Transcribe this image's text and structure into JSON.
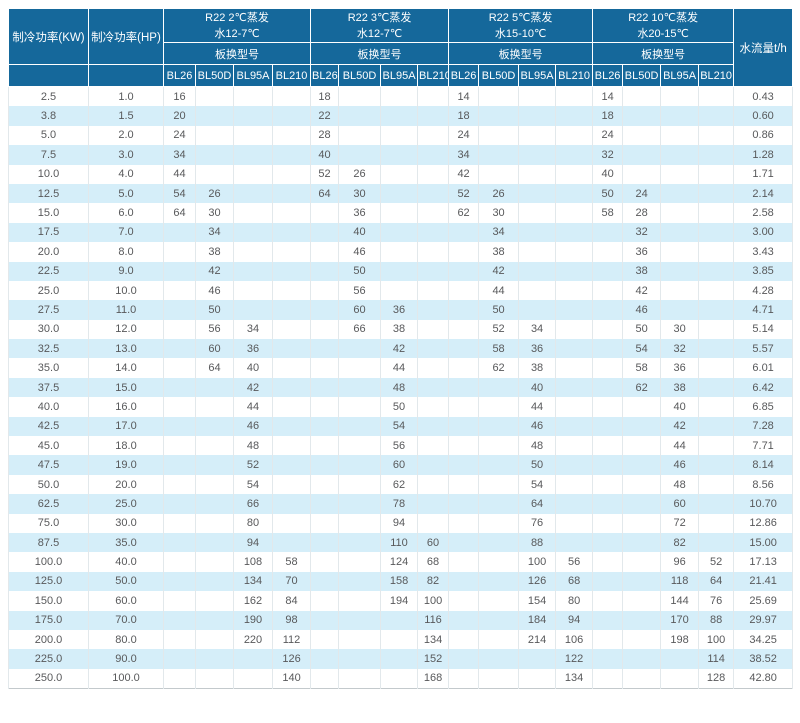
{
  "colors": {
    "header_bg": "#15689B",
    "header_text": "#ffffff",
    "row_bg": "#ffffff",
    "row_alt_bg": "#D5EEF9",
    "cell_text": "#58595B",
    "grid_line": "#e2e8eb"
  },
  "table": {
    "header": {
      "kw_label": "制冷功率(KW)",
      "hp_label": "制冷功率(HP)",
      "flow_label": "水流量t/h",
      "model_group_label": "板换型号",
      "model_columns": [
        "BL26",
        "BL50D",
        "BL95A",
        "BL210"
      ],
      "groups": [
        {
          "condition": "R22 2℃蒸发",
          "water": "水12-7℃"
        },
        {
          "condition": "R22 3℃蒸发",
          "water": "水12-7℃"
        },
        {
          "condition": "R22 5℃蒸发",
          "water": "水15-10℃"
        },
        {
          "condition": "R22 10℃蒸发",
          "water": "水20-15℃"
        }
      ]
    },
    "rows": [
      {
        "kw": "2.5",
        "hp": "1.0",
        "values": [
          "16",
          "",
          "",
          "",
          "18",
          "",
          "",
          "",
          "14",
          "",
          "",
          "",
          "14",
          "",
          "",
          ""
        ],
        "flow": "0.43"
      },
      {
        "kw": "3.8",
        "hp": "1.5",
        "values": [
          "20",
          "",
          "",
          "",
          "22",
          "",
          "",
          "",
          "18",
          "",
          "",
          "",
          "18",
          "",
          "",
          ""
        ],
        "flow": "0.60"
      },
      {
        "kw": "5.0",
        "hp": "2.0",
        "values": [
          "24",
          "",
          "",
          "",
          "28",
          "",
          "",
          "",
          "24",
          "",
          "",
          "",
          "24",
          "",
          "",
          ""
        ],
        "flow": "0.86"
      },
      {
        "kw": "7.5",
        "hp": "3.0",
        "values": [
          "34",
          "",
          "",
          "",
          "40",
          "",
          "",
          "",
          "34",
          "",
          "",
          "",
          "32",
          "",
          "",
          ""
        ],
        "flow": "1.28"
      },
      {
        "kw": "10.0",
        "hp": "4.0",
        "values": [
          "44",
          "",
          "",
          "",
          "52",
          "26",
          "",
          "",
          "42",
          "",
          "",
          "",
          "40",
          "",
          "",
          ""
        ],
        "flow": "1.71"
      },
      {
        "kw": "12.5",
        "hp": "5.0",
        "values": [
          "54",
          "26",
          "",
          "",
          "64",
          "30",
          "",
          "",
          "52",
          "26",
          "",
          "",
          "50",
          "24",
          "",
          ""
        ],
        "flow": "2.14"
      },
      {
        "kw": "15.0",
        "hp": "6.0",
        "values": [
          "64",
          "30",
          "",
          "",
          "",
          "36",
          "",
          "",
          "62",
          "30",
          "",
          "",
          "58",
          "28",
          "",
          ""
        ],
        "flow": "2.58"
      },
      {
        "kw": "17.5",
        "hp": "7.0",
        "values": [
          "",
          "34",
          "",
          "",
          "",
          "40",
          "",
          "",
          "",
          "34",
          "",
          "",
          "",
          "32",
          "",
          ""
        ],
        "flow": "3.00"
      },
      {
        "kw": "20.0",
        "hp": "8.0",
        "values": [
          "",
          "38",
          "",
          "",
          "",
          "46",
          "",
          "",
          "",
          "38",
          "",
          "",
          "",
          "36",
          "",
          ""
        ],
        "flow": "3.43"
      },
      {
        "kw": "22.5",
        "hp": "9.0",
        "values": [
          "",
          "42",
          "",
          "",
          "",
          "50",
          "",
          "",
          "",
          "42",
          "",
          "",
          "",
          "38",
          "",
          ""
        ],
        "flow": "3.85"
      },
      {
        "kw": "25.0",
        "hp": "10.0",
        "values": [
          "",
          "46",
          "",
          "",
          "",
          "56",
          "",
          "",
          "",
          "44",
          "",
          "",
          "",
          "42",
          "",
          ""
        ],
        "flow": "4.28"
      },
      {
        "kw": "27.5",
        "hp": "11.0",
        "values": [
          "",
          "50",
          "",
          "",
          "",
          "60",
          "36",
          "",
          "",
          "50",
          "",
          "",
          "",
          "46",
          "",
          ""
        ],
        "flow": "4.71"
      },
      {
        "kw": "30.0",
        "hp": "12.0",
        "values": [
          "",
          "56",
          "34",
          "",
          "",
          "66",
          "38",
          "",
          "",
          "52",
          "34",
          "",
          "",
          "50",
          "30",
          ""
        ],
        "flow": "5.14"
      },
      {
        "kw": "32.5",
        "hp": "13.0",
        "values": [
          "",
          "60",
          "36",
          "",
          "",
          "",
          "42",
          "",
          "",
          "58",
          "36",
          "",
          "",
          "54",
          "32",
          ""
        ],
        "flow": "5.57"
      },
      {
        "kw": "35.0",
        "hp": "14.0",
        "values": [
          "",
          "64",
          "40",
          "",
          "",
          "",
          "44",
          "",
          "",
          "62",
          "38",
          "",
          "",
          "58",
          "36",
          ""
        ],
        "flow": "6.01"
      },
      {
        "kw": "37.5",
        "hp": "15.0",
        "values": [
          "",
          "",
          "42",
          "",
          "",
          "",
          "48",
          "",
          "",
          "",
          "40",
          "",
          "",
          "62",
          "38",
          ""
        ],
        "flow": "6.42"
      },
      {
        "kw": "40.0",
        "hp": "16.0",
        "values": [
          "",
          "",
          "44",
          "",
          "",
          "",
          "50",
          "",
          "",
          "",
          "44",
          "",
          "",
          "",
          "40",
          ""
        ],
        "flow": "6.85"
      },
      {
        "kw": "42.5",
        "hp": "17.0",
        "values": [
          "",
          "",
          "46",
          "",
          "",
          "",
          "54",
          "",
          "",
          "",
          "46",
          "",
          "",
          "",
          "42",
          ""
        ],
        "flow": "7.28"
      },
      {
        "kw": "45.0",
        "hp": "18.0",
        "values": [
          "",
          "",
          "48",
          "",
          "",
          "",
          "56",
          "",
          "",
          "",
          "48",
          "",
          "",
          "",
          "44",
          ""
        ],
        "flow": "7.71"
      },
      {
        "kw": "47.5",
        "hp": "19.0",
        "values": [
          "",
          "",
          "52",
          "",
          "",
          "",
          "60",
          "",
          "",
          "",
          "50",
          "",
          "",
          "",
          "46",
          ""
        ],
        "flow": "8.14"
      },
      {
        "kw": "50.0",
        "hp": "20.0",
        "values": [
          "",
          "",
          "54",
          "",
          "",
          "",
          "62",
          "",
          "",
          "",
          "54",
          "",
          "",
          "",
          "48",
          ""
        ],
        "flow": "8.56"
      },
      {
        "kw": "62.5",
        "hp": "25.0",
        "values": [
          "",
          "",
          "66",
          "",
          "",
          "",
          "78",
          "",
          "",
          "",
          "64",
          "",
          "",
          "",
          "60",
          ""
        ],
        "flow": "10.70"
      },
      {
        "kw": "75.0",
        "hp": "30.0",
        "values": [
          "",
          "",
          "80",
          "",
          "",
          "",
          "94",
          "",
          "",
          "",
          "76",
          "",
          "",
          "",
          "72",
          ""
        ],
        "flow": "12.86"
      },
      {
        "kw": "87.5",
        "hp": "35.0",
        "values": [
          "",
          "",
          "94",
          "",
          "",
          "",
          "110",
          "60",
          "",
          "",
          "88",
          "",
          "",
          "",
          "82",
          ""
        ],
        "flow": "15.00"
      },
      {
        "kw": "100.0",
        "hp": "40.0",
        "values": [
          "",
          "",
          "108",
          "58",
          "",
          "",
          "124",
          "68",
          "",
          "",
          "100",
          "56",
          "",
          "",
          "96",
          "52"
        ],
        "flow": "17.13"
      },
      {
        "kw": "125.0",
        "hp": "50.0",
        "values": [
          "",
          "",
          "134",
          "70",
          "",
          "",
          "158",
          "82",
          "",
          "",
          "126",
          "68",
          "",
          "",
          "118",
          "64"
        ],
        "flow": "21.41"
      },
      {
        "kw": "150.0",
        "hp": "60.0",
        "values": [
          "",
          "",
          "162",
          "84",
          "",
          "",
          "194",
          "100",
          "",
          "",
          "154",
          "80",
          "",
          "",
          "144",
          "76"
        ],
        "flow": "25.69"
      },
      {
        "kw": "175.0",
        "hp": "70.0",
        "values": [
          "",
          "",
          "190",
          "98",
          "",
          "",
          "",
          "116",
          "",
          "",
          "184",
          "94",
          "",
          "",
          "170",
          "88"
        ],
        "flow": "29.97"
      },
      {
        "kw": "200.0",
        "hp": "80.0",
        "values": [
          "",
          "",
          "220",
          "112",
          "",
          "",
          "",
          "134",
          "",
          "",
          "214",
          "106",
          "",
          "",
          "198",
          "100"
        ],
        "flow": "34.25"
      },
      {
        "kw": "225.0",
        "hp": "90.0",
        "values": [
          "",
          "",
          "",
          "126",
          "",
          "",
          "",
          "152",
          "",
          "",
          "",
          "122",
          "",
          "",
          "",
          "114"
        ],
        "flow": "38.52"
      },
      {
        "kw": "250.0",
        "hp": "100.0",
        "values": [
          "",
          "",
          "",
          "140",
          "",
          "",
          "",
          "168",
          "",
          "",
          "",
          "134",
          "",
          "",
          "",
          "128"
        ],
        "flow": "42.80"
      }
    ]
  }
}
